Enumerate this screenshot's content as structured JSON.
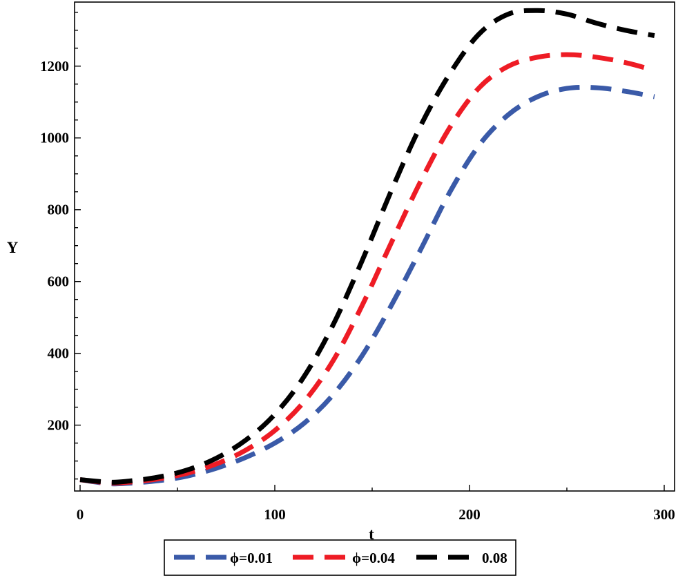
{
  "chart_data": {
    "type": "line",
    "title": "",
    "xlabel": "t",
    "ylabel": "Y",
    "xlim": [
      0,
      300
    ],
    "ylim": [
      30,
      1365
    ],
    "x_ticks": [
      0,
      100,
      200,
      300
    ],
    "y_ticks": [
      200,
      400,
      600,
      800,
      1000,
      1200
    ],
    "grid": false,
    "legend_position": "bottom",
    "x": [
      0,
      15,
      25,
      40,
      55,
      70,
      85,
      100,
      115,
      130,
      145,
      160,
      175,
      190,
      205,
      220,
      235,
      250,
      265,
      280,
      295
    ],
    "series": [
      {
        "name": "ϕ=0.01",
        "color": "#3a5aa8",
        "values": [
          48,
          37,
          38,
          45,
          58,
          80,
          110,
          150,
          205,
          285,
          395,
          535,
          690,
          850,
          980,
          1065,
          1115,
          1138,
          1140,
          1130,
          1115
        ]
      },
      {
        "name": "ϕ=0.04",
        "color": "#ee1c25",
        "values": [
          48,
          39,
          41,
          50,
          66,
          92,
          130,
          185,
          265,
          380,
          535,
          710,
          880,
          1030,
          1140,
          1200,
          1225,
          1232,
          1225,
          1210,
          1188
        ]
      },
      {
        "name": "0.08",
        "color": "#000000",
        "values": [
          48,
          41,
          44,
          55,
          75,
          108,
          158,
          230,
          335,
          480,
          660,
          855,
          1035,
          1180,
          1290,
          1345,
          1355,
          1345,
          1320,
          1300,
          1285
        ]
      }
    ]
  }
}
